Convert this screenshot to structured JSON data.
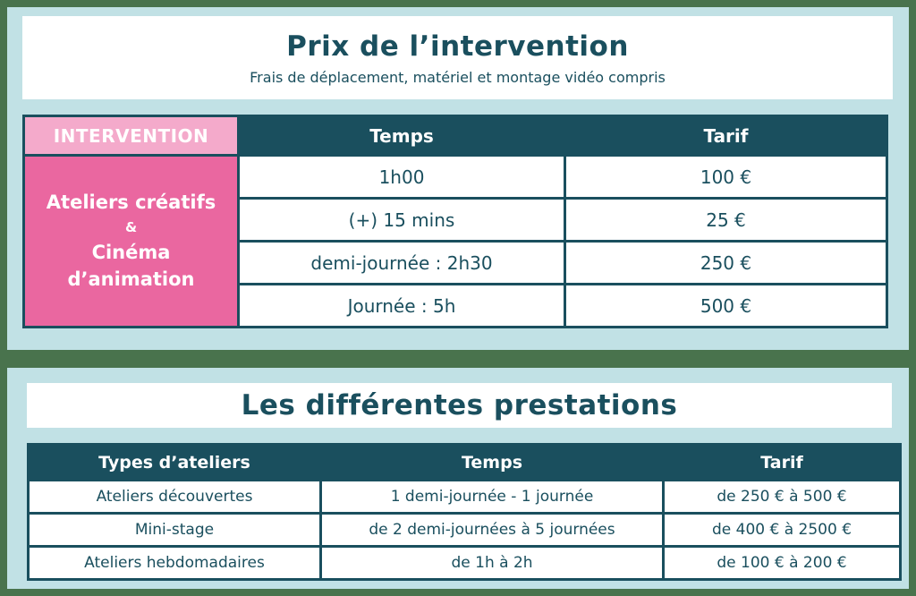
{
  "colors": {
    "green": "#49734d",
    "blue": "#c1e1e5",
    "teal": "#1a4f5e",
    "pink-light": "#f4aacb",
    "pink-dark": "#ea67a0",
    "white": "#ffffff"
  },
  "section1": {
    "title": "Prix de l’intervention",
    "subtitle": "Frais de déplacement, matériel et montage vidéo compris",
    "table": {
      "intervention_header": "INTERVENTION",
      "intervention_label_lines": [
        "Ateliers créatifs",
        "&",
        "Cinéma",
        "d’animation"
      ],
      "columns": [
        "Temps",
        "Tarif"
      ],
      "rows": [
        {
          "temps": "1h00",
          "tarif": "100 €"
        },
        {
          "temps": "(+) 15 mins",
          "tarif": "25 €"
        },
        {
          "temps": "demi-journée : 2h30",
          "tarif": "250 €"
        },
        {
          "temps": "Journée : 5h",
          "tarif": "500 €"
        }
      ]
    }
  },
  "section2": {
    "title": "Les différentes prestations",
    "table": {
      "columns": [
        "Types d’ateliers",
        "Temps",
        "Tarif"
      ],
      "rows": [
        {
          "type": "Ateliers découvertes",
          "temps": "1 demi-journée - 1 journée",
          "tarif": "de 250 € à 500 €"
        },
        {
          "type": "Mini-stage",
          "temps": "de 2 demi-journées à 5 journées",
          "tarif": "de 400 € à 2500 €"
        },
        {
          "type": "Ateliers hebdomadaires",
          "temps": "de 1h à 2h",
          "tarif": "de 100 € à 200 €"
        }
      ]
    }
  }
}
